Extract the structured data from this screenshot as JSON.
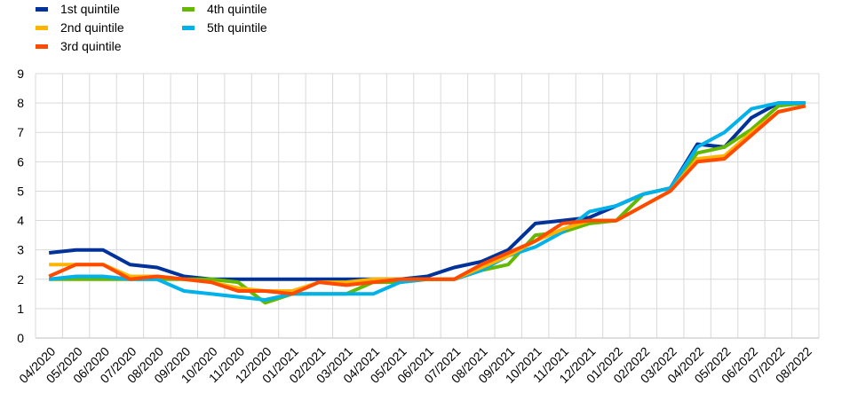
{
  "chart_data": {
    "type": "line",
    "title": "",
    "xlabel": "",
    "ylabel": "",
    "ylim": [
      0,
      9
    ],
    "yticks": [
      0,
      1,
      2,
      3,
      4,
      5,
      6,
      7,
      8,
      9
    ],
    "grid": true,
    "legend_position": "top-left",
    "categories": [
      "04/2020",
      "05/2020",
      "06/2020",
      "07/2020",
      "08/2020",
      "09/2020",
      "10/2020",
      "11/2020",
      "12/2020",
      "01/2021",
      "02/2021",
      "03/2021",
      "04/2021",
      "05/2021",
      "06/2021",
      "07/2021",
      "08/2021",
      "09/2021",
      "10/2021",
      "11/2021",
      "12/2021",
      "01/2022",
      "02/2022",
      "03/2022",
      "04/2022",
      "05/2022",
      "06/2022",
      "07/2022",
      "08/2022"
    ],
    "series": [
      {
        "name": "1st quintile",
        "color": "#003299",
        "values": [
          2.9,
          3.0,
          3.0,
          2.5,
          2.4,
          2.1,
          2.0,
          2.0,
          2.0,
          2.0,
          2.0,
          2.0,
          2.0,
          2.0,
          2.1,
          2.4,
          2.6,
          3.0,
          3.9,
          4.0,
          4.1,
          4.5,
          4.9,
          5.1,
          6.6,
          6.5,
          7.5,
          8.0,
          8.0
        ]
      },
      {
        "name": "4th quintile",
        "color": "#65b800",
        "values": [
          2.0,
          2.0,
          2.0,
          2.0,
          2.0,
          2.0,
          2.0,
          1.9,
          1.2,
          1.5,
          1.5,
          1.5,
          1.9,
          1.9,
          2.0,
          2.0,
          2.3,
          2.5,
          3.5,
          3.6,
          3.9,
          4.0,
          4.9,
          5.1,
          6.3,
          6.5,
          7.1,
          7.9,
          8.0
        ]
      },
      {
        "name": "2nd quintile",
        "color": "#ffb400",
        "values": [
          2.5,
          2.5,
          2.5,
          2.1,
          2.1,
          2.0,
          1.9,
          1.7,
          1.6,
          1.6,
          1.9,
          1.9,
          2.0,
          2.0,
          2.0,
          2.0,
          2.4,
          2.8,
          3.3,
          3.7,
          4.0,
          4.0,
          4.5,
          5.0,
          6.1,
          6.2,
          7.0,
          7.7,
          7.9
        ]
      },
      {
        "name": "5th quintile",
        "color": "#00b1ea",
        "values": [
          2.0,
          2.1,
          2.1,
          2.0,
          2.0,
          1.6,
          1.5,
          1.4,
          1.3,
          1.5,
          1.5,
          1.5,
          1.5,
          1.9,
          2.0,
          2.0,
          2.3,
          2.8,
          3.1,
          3.6,
          4.3,
          4.5,
          4.9,
          5.1,
          6.5,
          7.0,
          7.8,
          8.0,
          8.0
        ]
      },
      {
        "name": "3rd quintile",
        "color": "#ff4b00",
        "values": [
          2.1,
          2.5,
          2.5,
          2.0,
          2.1,
          2.0,
          1.9,
          1.6,
          1.6,
          1.5,
          1.9,
          1.8,
          1.9,
          2.0,
          2.0,
          2.0,
          2.5,
          2.9,
          3.3,
          3.9,
          4.0,
          4.0,
          4.5,
          5.0,
          6.0,
          6.1,
          6.9,
          7.7,
          7.9
        ]
      }
    ],
    "draw_order": [
      0,
      1,
      3,
      2,
      4
    ]
  }
}
